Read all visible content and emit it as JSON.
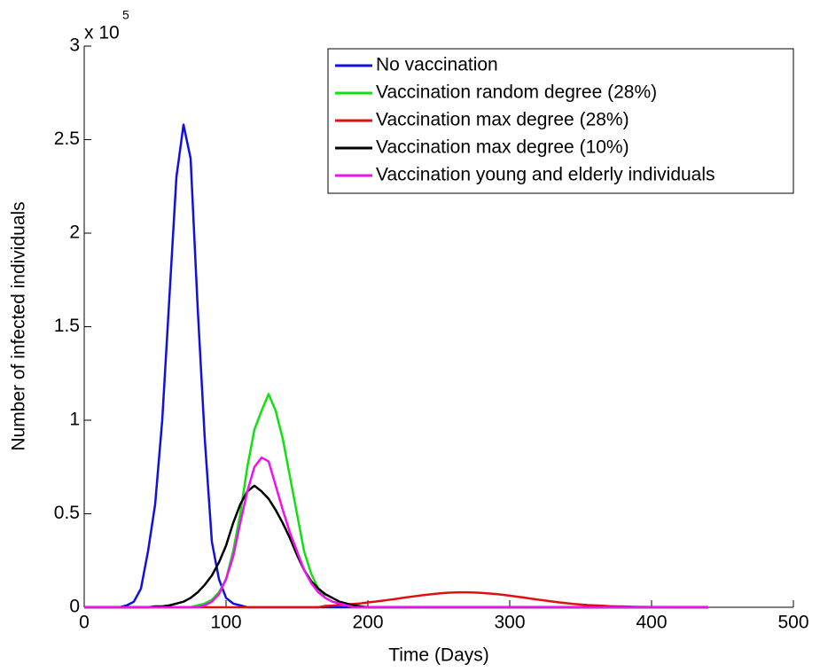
{
  "chart_data": {
    "type": "line",
    "y_label": "Number of infected individuals",
    "x_label": "Time (Days)",
    "y_multiplier": {
      "base": "x 10",
      "exponent": "5"
    },
    "xlim": [
      0,
      500
    ],
    "xticks": [
      0,
      100,
      200,
      300,
      400,
      500
    ],
    "ylim": [
      0,
      3
    ],
    "yticks": [
      0,
      0.5,
      1,
      1.5,
      2,
      2.5,
      3
    ],
    "legend": "upper right",
    "x": [
      0,
      5,
      10,
      15,
      20,
      25,
      30,
      35,
      40,
      45,
      50,
      55,
      60,
      65,
      70,
      75,
      80,
      85,
      90,
      95,
      100,
      105,
      110,
      115,
      120,
      125,
      130,
      135,
      140,
      145,
      150,
      155,
      160,
      165,
      170,
      175,
      180,
      185,
      190,
      195,
      200,
      205,
      210,
      215,
      220,
      225,
      230,
      235,
      240,
      245,
      250,
      255,
      260,
      265,
      270,
      275,
      280,
      285,
      290,
      295,
      300,
      305,
      310,
      315,
      320,
      325,
      330,
      335,
      340,
      345,
      350,
      355,
      360,
      365,
      370,
      375,
      380,
      385,
      390,
      395,
      400,
      405,
      410,
      415,
      420,
      425,
      430,
      435,
      440
    ],
    "series": [
      {
        "name": "No vaccination",
        "color": "#1010e0",
        "values": [
          0,
          0,
          0,
          0,
          0,
          0,
          0.01,
          0.03,
          0.1,
          0.3,
          0.55,
          1.0,
          1.65,
          2.3,
          2.58,
          2.4,
          1.6,
          0.9,
          0.35,
          0.15,
          0.05,
          0.02,
          0.01,
          0,
          0,
          0,
          0,
          0,
          0,
          0,
          0,
          0,
          0,
          0,
          0,
          0,
          0,
          0,
          0,
          0,
          0,
          0,
          0,
          0,
          0,
          0,
          0,
          0,
          0,
          0,
          0,
          0,
          0,
          0,
          0,
          0,
          0,
          0,
          0,
          0,
          0,
          0,
          0,
          0,
          0,
          0,
          0,
          0,
          0,
          0,
          0,
          0,
          0,
          0,
          0,
          0,
          0,
          0,
          0,
          0,
          0,
          0,
          0,
          0,
          0,
          0,
          0,
          0,
          0
        ]
      },
      {
        "name": "Vaccination random degree (28%)",
        "color": "#10e010",
        "values": [
          0,
          0,
          0,
          0,
          0,
          0,
          0,
          0,
          0,
          0,
          0,
          0,
          0,
          0,
          0,
          0,
          0.01,
          0.02,
          0.04,
          0.08,
          0.15,
          0.3,
          0.5,
          0.75,
          0.95,
          1.05,
          1.14,
          1.05,
          0.9,
          0.7,
          0.5,
          0.3,
          0.18,
          0.1,
          0.05,
          0.03,
          0.02,
          0.01,
          0,
          0,
          0,
          0,
          0,
          0,
          0,
          0,
          0,
          0,
          0,
          0,
          0,
          0,
          0,
          0,
          0,
          0,
          0,
          0,
          0,
          0,
          0,
          0,
          0,
          0,
          0,
          0,
          0,
          0,
          0,
          0,
          0,
          0,
          0,
          0,
          0,
          0,
          0,
          0,
          0,
          0,
          0,
          0,
          0,
          0,
          0,
          0,
          0,
          0,
          0
        ]
      },
      {
        "name": "Vaccination max degree (28%)",
        "color": "#e01010",
        "values": [
          0,
          0,
          0,
          0,
          0,
          0,
          0,
          0,
          0,
          0,
          0,
          0,
          0,
          0,
          0,
          0,
          0,
          0,
          0,
          0,
          0,
          0,
          0,
          0,
          0,
          0,
          0,
          0,
          0,
          0,
          0,
          0,
          0,
          0,
          0.007,
          0.009,
          0.012,
          0.015,
          0.018,
          0.021,
          0.026,
          0.03,
          0.035,
          0.04,
          0.045,
          0.051,
          0.056,
          0.061,
          0.066,
          0.07,
          0.074,
          0.077,
          0.079,
          0.08,
          0.08,
          0.079,
          0.077,
          0.074,
          0.071,
          0.067,
          0.062,
          0.057,
          0.052,
          0.046,
          0.041,
          0.036,
          0.031,
          0.026,
          0.022,
          0.018,
          0.015,
          0.012,
          0.01,
          0.008,
          0.006,
          0.005,
          0.004,
          0.003,
          0.002,
          0.002,
          0.001,
          0.001,
          0.001,
          0,
          0,
          0,
          0,
          0,
          0
        ]
      },
      {
        "name": "Vaccination max degree (10%)",
        "color": "#000000",
        "values": [
          0,
          0,
          0,
          0,
          0,
          0,
          0,
          0,
          0,
          0,
          0.005,
          0.005,
          0.01,
          0.02,
          0.03,
          0.05,
          0.08,
          0.12,
          0.17,
          0.24,
          0.33,
          0.45,
          0.55,
          0.62,
          0.65,
          0.62,
          0.58,
          0.52,
          0.45,
          0.37,
          0.28,
          0.2,
          0.14,
          0.1,
          0.07,
          0.05,
          0.03,
          0.02,
          0.01,
          0.005,
          0,
          0,
          0,
          0,
          0,
          0,
          0,
          0,
          0,
          0,
          0,
          0,
          0,
          0,
          0,
          0,
          0,
          0,
          0,
          0,
          0,
          0,
          0,
          0,
          0,
          0,
          0,
          0,
          0,
          0,
          0,
          0,
          0,
          0,
          0,
          0,
          0,
          0,
          0,
          0,
          0,
          0,
          0,
          0,
          0,
          0,
          0,
          0,
          0
        ]
      },
      {
        "name": "Vaccination young and elderly individuals",
        "color": "#f010f0",
        "values": [
          0,
          0,
          0,
          0,
          0,
          0,
          0,
          0,
          0,
          0,
          0,
          0,
          0,
          0,
          0,
          0,
          0,
          0.01,
          0.03,
          0.07,
          0.15,
          0.27,
          0.45,
          0.62,
          0.75,
          0.8,
          0.78,
          0.65,
          0.52,
          0.4,
          0.3,
          0.2,
          0.13,
          0.08,
          0.05,
          0.03,
          0.02,
          0.01,
          0,
          0,
          0,
          0,
          0,
          0,
          0,
          0,
          0,
          0,
          0,
          0,
          0,
          0,
          0,
          0,
          0,
          0,
          0,
          0,
          0,
          0,
          0,
          0,
          0,
          0,
          0,
          0,
          0,
          0,
          0,
          0,
          0,
          0,
          0,
          0,
          0,
          0,
          0,
          0,
          0,
          0,
          0,
          0,
          0,
          0,
          0,
          0,
          0,
          0,
          0
        ]
      }
    ]
  }
}
